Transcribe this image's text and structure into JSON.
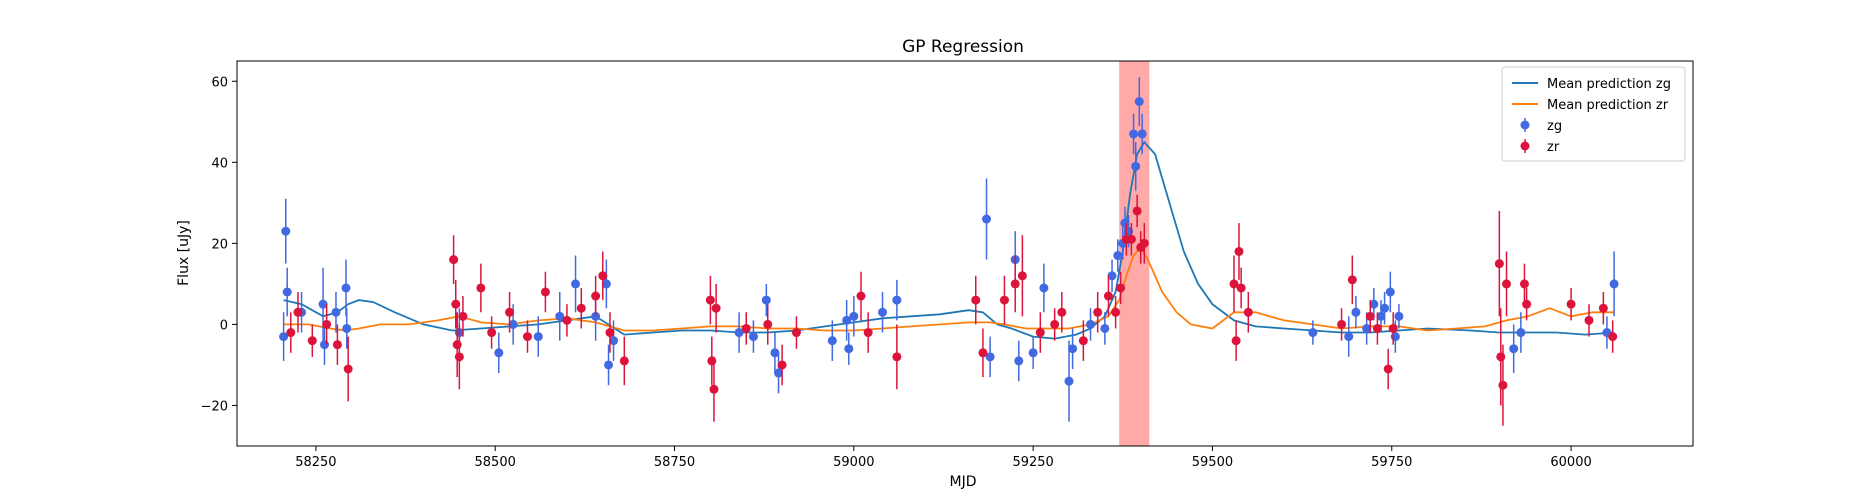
{
  "chart_data": {
    "type": "scatter",
    "title": "GP Regression",
    "xlabel": "MJD",
    "ylabel": "Flux [uJy]",
    "xlim": [
      58140,
      60170
    ],
    "ylim": [
      -30,
      65
    ],
    "xticks": [
      58250,
      58500,
      58750,
      59000,
      59250,
      59500,
      59750,
      60000
    ],
    "yticks": [
      -20,
      0,
      20,
      40,
      60
    ],
    "grid": false,
    "legend_position": "top-right",
    "highlight_span": [
      59370,
      59412
    ],
    "highlight_color": "#ff9a9a",
    "series": [
      {
        "name": "Mean prediction zg",
        "kind": "line",
        "color": "#1f77b4",
        "x": [
          58205,
          58230,
          58260,
          58280,
          58295,
          58310,
          58330,
          58360,
          58400,
          58440,
          58480,
          58520,
          58560,
          58600,
          58640,
          58680,
          58720,
          58760,
          58800,
          58840,
          58880,
          58920,
          58960,
          59000,
          59040,
          59080,
          59120,
          59160,
          59180,
          59200,
          59220,
          59250,
          59280,
          59310,
          59330,
          59350,
          59365,
          59375,
          59385,
          59395,
          59405,
          59420,
          59440,
          59460,
          59480,
          59500,
          59530,
          59560,
          59600,
          59640,
          59680,
          59720,
          59760,
          59800,
          59860,
          59900,
          59940,
          59980,
          60020,
          60060
        ],
        "y": [
          6,
          5,
          2,
          3,
          5,
          6,
          5.5,
          3,
          0,
          -1.5,
          -1,
          -0.5,
          0,
          1,
          2,
          -2.5,
          -2,
          -1.5,
          -1.5,
          -2,
          -2,
          -1.5,
          -0.5,
          0.5,
          1.5,
          2,
          2.5,
          3.5,
          3,
          0,
          -1,
          -3,
          -3.5,
          -2.5,
          -1,
          2,
          8,
          18,
          32,
          42,
          45,
          42,
          30,
          18,
          10,
          5,
          1,
          -0.5,
          -1,
          -1.5,
          -2,
          -2,
          -1.5,
          -1,
          -1.5,
          -2,
          -2,
          -2,
          -2.5,
          -2
        ]
      },
      {
        "name": "Mean prediction zr",
        "kind": "line",
        "color": "#ff7f0e",
        "x": [
          58205,
          58240,
          58270,
          58290,
          58310,
          58340,
          58380,
          58420,
          58450,
          58480,
          58520,
          58560,
          58600,
          58640,
          58680,
          58720,
          58760,
          58800,
          58840,
          58880,
          58920,
          58960,
          59000,
          59040,
          59080,
          59120,
          59160,
          59190,
          59210,
          59240,
          59270,
          59300,
          59330,
          59355,
          59370,
          59380,
          59390,
          59400,
          59410,
          59430,
          59450,
          59470,
          59500,
          59530,
          59560,
          59600,
          59640,
          59680,
          59720,
          59760,
          59800,
          59840,
          59880,
          59910,
          59940,
          59970,
          60000,
          60030,
          60060
        ],
        "y": [
          0,
          0,
          -1,
          -1.5,
          -1,
          0,
          0,
          1,
          2,
          0.5,
          0,
          1,
          1.5,
          0.5,
          -1.5,
          -1.5,
          -1,
          -0.5,
          -0.5,
          -1,
          -1,
          -1.5,
          -1.5,
          -1,
          -0.5,
          0,
          0.5,
          0.5,
          0,
          -1,
          -1,
          -1,
          0,
          2,
          6,
          12,
          17,
          19,
          16,
          8,
          3,
          0,
          -1,
          3,
          3,
          1,
          0,
          -1,
          -0.5,
          -0.5,
          -1.5,
          -1,
          -0.5,
          1,
          2,
          4,
          2,
          3,
          3
        ]
      },
      {
        "name": "zg",
        "kind": "errorbar",
        "color": "#4169e1",
        "points": [
          {
            "x": 58208,
            "y": 23,
            "err": 8
          },
          {
            "x": 58210,
            "y": 8,
            "err": 6
          },
          {
            "x": 58205,
            "y": -3,
            "err": 6
          },
          {
            "x": 58230,
            "y": 3,
            "err": 5
          },
          {
            "x": 58260,
            "y": 5,
            "err": 9
          },
          {
            "x": 58262,
            "y": -5,
            "err": 5
          },
          {
            "x": 58278,
            "y": 3,
            "err": 5
          },
          {
            "x": 58292,
            "y": 9,
            "err": 7
          },
          {
            "x": 58293,
            "y": -1,
            "err": 5
          },
          {
            "x": 58450,
            "y": -2,
            "err": 6
          },
          {
            "x": 58505,
            "y": -7,
            "err": 5
          },
          {
            "x": 58525,
            "y": 0,
            "err": 5
          },
          {
            "x": 58560,
            "y": -3,
            "err": 5
          },
          {
            "x": 58590,
            "y": 2,
            "err": 6
          },
          {
            "x": 58612,
            "y": 10,
            "err": 7
          },
          {
            "x": 58640,
            "y": 2,
            "err": 6
          },
          {
            "x": 58655,
            "y": 10,
            "err": 6
          },
          {
            "x": 58658,
            "y": -10,
            "err": 5
          },
          {
            "x": 58665,
            "y": -4,
            "err": 5
          },
          {
            "x": 58840,
            "y": -2,
            "err": 5
          },
          {
            "x": 58860,
            "y": -3,
            "err": 4
          },
          {
            "x": 58878,
            "y": 6,
            "err": 4
          },
          {
            "x": 58890,
            "y": -7,
            "err": 5
          },
          {
            "x": 58895,
            "y": -12,
            "err": 5
          },
          {
            "x": 58970,
            "y": -4,
            "err": 5
          },
          {
            "x": 58990,
            "y": 1,
            "err": 5
          },
          {
            "x": 58993,
            "y": -6,
            "err": 4
          },
          {
            "x": 59000,
            "y": 2,
            "err": 5
          },
          {
            "x": 59040,
            "y": 3,
            "err": 5
          },
          {
            "x": 59060,
            "y": 6,
            "err": 5
          },
          {
            "x": 59185,
            "y": 26,
            "err": 10
          },
          {
            "x": 59190,
            "y": -8,
            "err": 5
          },
          {
            "x": 59225,
            "y": 16,
            "err": 7
          },
          {
            "x": 59230,
            "y": -9,
            "err": 5
          },
          {
            "x": 59250,
            "y": -7,
            "err": 4
          },
          {
            "x": 59265,
            "y": 9,
            "err": 6
          },
          {
            "x": 59300,
            "y": -14,
            "err": 10
          },
          {
            "x": 59305,
            "y": -6,
            "err": 5
          },
          {
            "x": 59330,
            "y": 0,
            "err": 4
          },
          {
            "x": 59350,
            "y": -1,
            "err": 4
          },
          {
            "x": 59360,
            "y": 12,
            "err": 4
          },
          {
            "x": 59368,
            "y": 17,
            "err": 4
          },
          {
            "x": 59375,
            "y": 20,
            "err": 4
          },
          {
            "x": 59378,
            "y": 25,
            "err": 4
          },
          {
            "x": 59383,
            "y": 23,
            "err": 4
          },
          {
            "x": 59390,
            "y": 47,
            "err": 5
          },
          {
            "x": 59393,
            "y": 39,
            "err": 6
          },
          {
            "x": 59398,
            "y": 55,
            "err": 6
          },
          {
            "x": 59402,
            "y": 47,
            "err": 5
          },
          {
            "x": 59640,
            "y": -2,
            "err": 3
          },
          {
            "x": 59690,
            "y": -3,
            "err": 5
          },
          {
            "x": 59700,
            "y": 3,
            "err": 4
          },
          {
            "x": 59715,
            "y": -1,
            "err": 4
          },
          {
            "x": 59725,
            "y": 5,
            "err": 4
          },
          {
            "x": 59735,
            "y": 2,
            "err": 4
          },
          {
            "x": 59740,
            "y": 4,
            "err": 4
          },
          {
            "x": 59748,
            "y": 8,
            "err": 5
          },
          {
            "x": 59755,
            "y": -3,
            "err": 4
          },
          {
            "x": 59760,
            "y": 2,
            "err": 3
          },
          {
            "x": 59920,
            "y": -6,
            "err": 6
          },
          {
            "x": 59930,
            "y": -2,
            "err": 5
          },
          {
            "x": 60050,
            "y": -2,
            "err": 4
          },
          {
            "x": 60060,
            "y": 10,
            "err": 8
          }
        ]
      },
      {
        "name": "zr",
        "kind": "errorbar",
        "color": "#dc143c",
        "points": [
          {
            "x": 58215,
            "y": -2,
            "err": 5
          },
          {
            "x": 58225,
            "y": 3,
            "err": 5
          },
          {
            "x": 58245,
            "y": -4,
            "err": 4
          },
          {
            "x": 58265,
            "y": 0,
            "err": 5
          },
          {
            "x": 58280,
            "y": -5,
            "err": 5
          },
          {
            "x": 58295,
            "y": -11,
            "err": 8
          },
          {
            "x": 58442,
            "y": 16,
            "err": 6
          },
          {
            "x": 58445,
            "y": 5,
            "err": 6
          },
          {
            "x": 58447,
            "y": -5,
            "err": 8
          },
          {
            "x": 58450,
            "y": -8,
            "err": 8
          },
          {
            "x": 58455,
            "y": 2,
            "err": 5
          },
          {
            "x": 58480,
            "y": 9,
            "err": 6
          },
          {
            "x": 58495,
            "y": -2,
            "err": 4
          },
          {
            "x": 58520,
            "y": 3,
            "err": 5
          },
          {
            "x": 58545,
            "y": -3,
            "err": 4
          },
          {
            "x": 58570,
            "y": 8,
            "err": 5
          },
          {
            "x": 58600,
            "y": 1,
            "err": 4
          },
          {
            "x": 58620,
            "y": 4,
            "err": 5
          },
          {
            "x": 58640,
            "y": 7,
            "err": 5
          },
          {
            "x": 58650,
            "y": 12,
            "err": 6
          },
          {
            "x": 58660,
            "y": -2,
            "err": 5
          },
          {
            "x": 58680,
            "y": -9,
            "err": 6
          },
          {
            "x": 58800,
            "y": 6,
            "err": 6
          },
          {
            "x": 58802,
            "y": -9,
            "err": 6
          },
          {
            "x": 58805,
            "y": -16,
            "err": 8
          },
          {
            "x": 58808,
            "y": 4,
            "err": 6
          },
          {
            "x": 58850,
            "y": -1,
            "err": 4
          },
          {
            "x": 58880,
            "y": 0,
            "err": 5
          },
          {
            "x": 58900,
            "y": -10,
            "err": 5
          },
          {
            "x": 58920,
            "y": -2,
            "err": 4
          },
          {
            "x": 59010,
            "y": 7,
            "err": 6
          },
          {
            "x": 59020,
            "y": -2,
            "err": 5
          },
          {
            "x": 59060,
            "y": -8,
            "err": 8
          },
          {
            "x": 59170,
            "y": 6,
            "err": 6
          },
          {
            "x": 59180,
            "y": -7,
            "err": 6
          },
          {
            "x": 59210,
            "y": 6,
            "err": 6
          },
          {
            "x": 59225,
            "y": 10,
            "err": 7
          },
          {
            "x": 59235,
            "y": 12,
            "err": 10
          },
          {
            "x": 59260,
            "y": -2,
            "err": 5
          },
          {
            "x": 59280,
            "y": 0,
            "err": 4
          },
          {
            "x": 59290,
            "y": 3,
            "err": 5
          },
          {
            "x": 59320,
            "y": -4,
            "err": 5
          },
          {
            "x": 59340,
            "y": 3,
            "err": 5
          },
          {
            "x": 59355,
            "y": 7,
            "err": 5
          },
          {
            "x": 59365,
            "y": 3,
            "err": 4
          },
          {
            "x": 59372,
            "y": 9,
            "err": 4
          },
          {
            "x": 59380,
            "y": 21,
            "err": 4
          },
          {
            "x": 59387,
            "y": 21,
            "err": 4
          },
          {
            "x": 59395,
            "y": 28,
            "err": 4
          },
          {
            "x": 59400,
            "y": 19,
            "err": 4
          },
          {
            "x": 59405,
            "y": 20,
            "err": 5
          },
          {
            "x": 59530,
            "y": 10,
            "err": 7
          },
          {
            "x": 59533,
            "y": -4,
            "err": 5
          },
          {
            "x": 59537,
            "y": 18,
            "err": 7
          },
          {
            "x": 59540,
            "y": 9,
            "err": 5
          },
          {
            "x": 59550,
            "y": 3,
            "err": 5
          },
          {
            "x": 59680,
            "y": 0,
            "err": 4
          },
          {
            "x": 59695,
            "y": 11,
            "err": 6
          },
          {
            "x": 59720,
            "y": 2,
            "err": 4
          },
          {
            "x": 59730,
            "y": -1,
            "err": 4
          },
          {
            "x": 59745,
            "y": -11,
            "err": 5
          },
          {
            "x": 59752,
            "y": -1,
            "err": 4
          },
          {
            "x": 59900,
            "y": 15,
            "err": 13
          },
          {
            "x": 59902,
            "y": -8,
            "err": 12
          },
          {
            "x": 59905,
            "y": -15,
            "err": 10
          },
          {
            "x": 59910,
            "y": 10,
            "err": 8
          },
          {
            "x": 59935,
            "y": 10,
            "err": 5
          },
          {
            "x": 59938,
            "y": 5,
            "err": 4
          },
          {
            "x": 60000,
            "y": 5,
            "err": 4
          },
          {
            "x": 60025,
            "y": 1,
            "err": 4
          },
          {
            "x": 60045,
            "y": 4,
            "err": 4
          },
          {
            "x": 60058,
            "y": -3,
            "err": 4
          }
        ]
      }
    ]
  }
}
